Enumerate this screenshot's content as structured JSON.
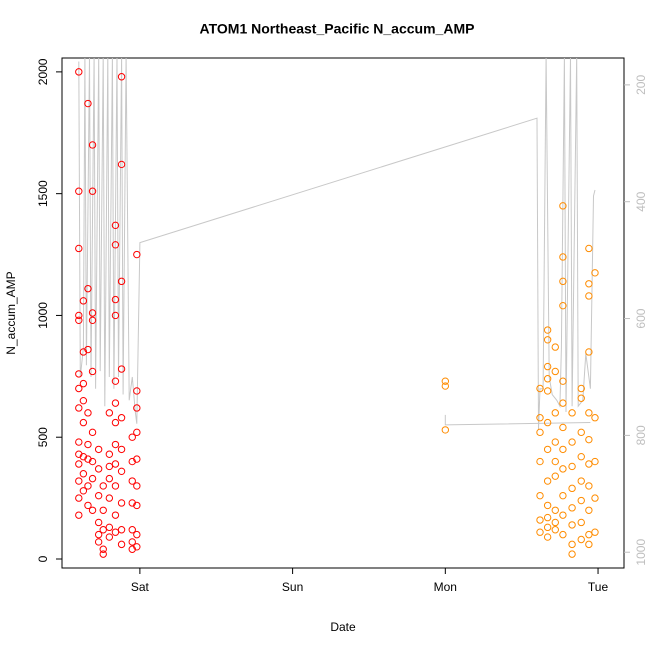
{
  "chart_data": {
    "type": "scatter",
    "title": "ATOM1 Northeast_Pacific N_accum_AMP",
    "x_label": "Date",
    "y_label": "N_accum_AMP",
    "xlim": [
      -0.51,
      3.17
    ],
    "xticks": [
      {
        "value": 0,
        "label": "Sat"
      },
      {
        "value": 1,
        "label": "Sun"
      },
      {
        "value": 2,
        "label": "Mon"
      },
      {
        "value": 3,
        "label": "Tue"
      }
    ],
    "ylim": [
      -37,
      2057
    ],
    "yticks": [
      0,
      500,
      1000,
      1500,
      2000
    ],
    "y2lim": [
      1027,
      154
    ],
    "y2ticks": [
      200,
      400,
      600,
      800,
      1000
    ],
    "y2_color": "#bebebe",
    "series": [
      {
        "color": "#ff0000",
        "x": [
          -0.4,
          -0.4,
          -0.4,
          -0.4,
          -0.4,
          -0.4,
          -0.4,
          -0.4,
          -0.4,
          -0.4,
          -0.4,
          -0.4,
          -0.4,
          -0.4,
          -0.37,
          -0.37,
          -0.37,
          -0.37,
          -0.37,
          -0.37,
          -0.37,
          -0.37,
          -0.34,
          -0.34,
          -0.34,
          -0.34,
          -0.34,
          -0.34,
          -0.34,
          -0.34,
          -0.31,
          -0.31,
          -0.31,
          -0.31,
          -0.31,
          -0.31,
          -0.31,
          -0.31,
          -0.31,
          -0.27,
          -0.27,
          -0.27,
          -0.27,
          -0.27,
          -0.27,
          -0.24,
          -0.24,
          -0.24,
          -0.24,
          -0.24,
          -0.2,
          -0.2,
          -0.2,
          -0.2,
          -0.2,
          -0.2,
          -0.2,
          -0.16,
          -0.16,
          -0.16,
          -0.16,
          -0.16,
          -0.16,
          -0.16,
          -0.16,
          -0.16,
          -0.16,
          -0.16,
          -0.16,
          -0.12,
          -0.12,
          -0.12,
          -0.12,
          -0.12,
          -0.12,
          -0.12,
          -0.12,
          -0.12,
          -0.12,
          -0.05,
          -0.05,
          -0.05,
          -0.05,
          -0.05,
          -0.05,
          -0.05,
          -0.02,
          -0.02,
          -0.02,
          -0.02,
          -0.02,
          -0.02,
          -0.02,
          -0.02,
          -0.02
        ],
        "values": [
          2000,
          1510,
          1275,
          1000,
          980,
          760,
          700,
          620,
          480,
          430,
          390,
          320,
          250,
          180,
          1060,
          850,
          720,
          650,
          560,
          420,
          350,
          280,
          1870,
          1110,
          860,
          600,
          470,
          410,
          300,
          220,
          1700,
          1510,
          1010,
          980,
          770,
          520,
          400,
          330,
          200,
          450,
          370,
          260,
          150,
          100,
          70,
          300,
          200,
          120,
          40,
          20,
          600,
          430,
          380,
          330,
          250,
          130,
          90,
          1370,
          1290,
          1065,
          1000,
          730,
          640,
          560,
          470,
          390,
          300,
          180,
          110,
          1980,
          1620,
          1140,
          780,
          580,
          450,
          360,
          230,
          120,
          60,
          500,
          400,
          320,
          230,
          120,
          70,
          40,
          1250,
          690,
          620,
          520,
          410,
          300,
          220,
          100,
          50
        ]
      },
      {
        "color": "#ff8c00",
        "x": [
          2,
          2,
          2,
          2.62,
          2.62,
          2.62,
          2.62,
          2.62,
          2.62,
          2.62,
          2.67,
          2.67,
          2.67,
          2.67,
          2.67,
          2.67,
          2.67,
          2.67,
          2.67,
          2.67,
          2.67,
          2.67,
          2.72,
          2.72,
          2.72,
          2.72,
          2.72,
          2.72,
          2.72,
          2.72,
          2.72,
          2.77,
          2.77,
          2.77,
          2.77,
          2.77,
          2.77,
          2.77,
          2.77,
          2.77,
          2.77,
          2.77,
          2.77,
          2.83,
          2.83,
          2.83,
          2.83,
          2.83,
          2.83,
          2.83,
          2.83,
          2.89,
          2.89,
          2.89,
          2.89,
          2.89,
          2.89,
          2.89,
          2.89,
          2.94,
          2.94,
          2.94,
          2.94,
          2.94,
          2.94,
          2.94,
          2.94,
          2.94,
          2.94,
          2.94,
          2.98,
          2.98,
          2.98,
          2.98,
          2.98
        ],
        "values": [
          730,
          710,
          530,
          700,
          580,
          520,
          400,
          260,
          160,
          110,
          940,
          900,
          790,
          740,
          690,
          560,
          450,
          320,
          220,
          170,
          130,
          90,
          870,
          770,
          600,
          480,
          400,
          340,
          200,
          150,
          120,
          1450,
          1240,
          1140,
          1040,
          730,
          640,
          540,
          450,
          370,
          260,
          180,
          100,
          600,
          480,
          380,
          290,
          210,
          140,
          60,
          20,
          700,
          660,
          520,
          420,
          320,
          240,
          150,
          80,
          1275,
          1130,
          1080,
          850,
          600,
          490,
          390,
          300,
          200,
          100,
          60,
          1175,
          580,
          400,
          250,
          110
        ]
      },
      {
        "color": "#c8c8c8",
        "axis": "y2",
        "kind": "line",
        "x": [
          -0.4,
          -0.39,
          -0.37,
          -0.36,
          -0.35,
          -0.33,
          -0.32,
          -0.3,
          -0.29,
          -0.27,
          -0.26,
          -0.24,
          -0.23,
          -0.21,
          -0.2,
          -0.18,
          -0.17,
          -0.15,
          -0.14,
          -0.12,
          -0.11,
          -0.09,
          -0.07,
          -0.05,
          -0.03,
          -0.02,
          0,
          2.6,
          2.61,
          2.62,
          2.64,
          2.66,
          2.68,
          2.7,
          2.73,
          2.75,
          2.76,
          2.78,
          2.79,
          2.82,
          2.83,
          2.86,
          2.87,
          2.9,
          2.92,
          2.95,
          2.97,
          2.98
        ],
        "values": [
          160,
          700,
          650,
          150,
          680,
          150,
          700,
          150,
          720,
          150,
          690,
          150,
          750,
          150,
          700,
          150,
          720,
          150,
          700,
          150,
          730,
          150,
          740,
          700,
          760,
          780,
          470,
          257,
          790,
          720,
          720,
          150,
          700,
          730,
          740,
          750,
          650,
          150,
          760,
          150,
          750,
          150,
          750,
          740,
          660,
          720,
          390,
          380
        ]
      },
      {
        "color": "#c8c8c8",
        "axis": "y2",
        "kind": "line",
        "x": [
          2,
          2,
          2.95
        ],
        "values": [
          765,
          782,
          778
        ]
      }
    ]
  }
}
